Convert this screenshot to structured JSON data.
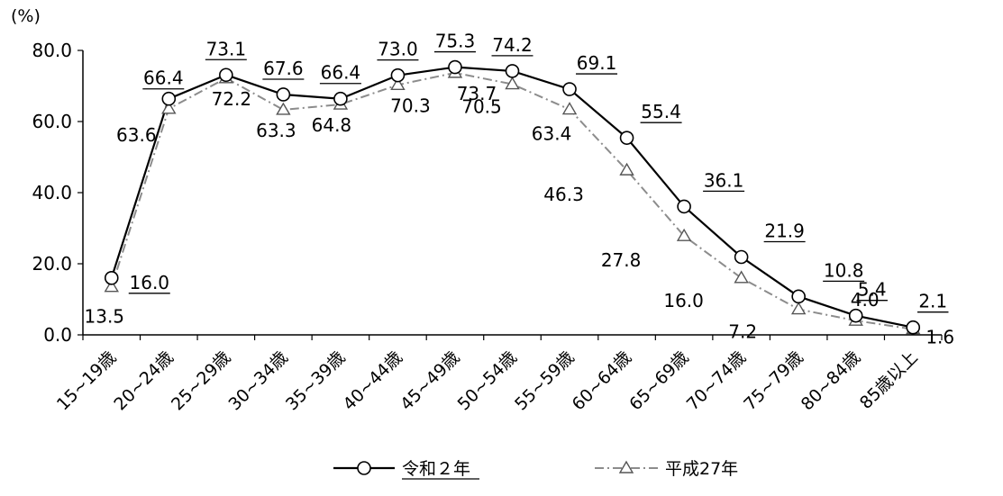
{
  "chart_data": {
    "type": "line",
    "unit_label": "(%)",
    "categories": [
      "15~19歳",
      "20~24歳",
      "25~29歳",
      "30~34歳",
      "35~39歳",
      "40~44歳",
      "45~49歳",
      "50~54歳",
      "55~59歳",
      "60~64歳",
      "65~69歳",
      "70~74歳",
      "75~79歳",
      "80~84歳",
      "85歳以上"
    ],
    "ylim": [
      0,
      80
    ],
    "yticks": [
      "0.0",
      "20.0",
      "40.0",
      "60.0",
      "80.0"
    ],
    "grid": false,
    "legend_position": "bottom",
    "series": [
      {
        "name": "令和２年",
        "marker": "circle",
        "line_style": "solid",
        "color": "#000000",
        "values": [
          16.0,
          66.4,
          73.1,
          67.6,
          66.4,
          73.0,
          75.3,
          74.2,
          69.1,
          55.4,
          36.1,
          21.9,
          10.8,
          5.4,
          2.1
        ],
        "labels": [
          "16.0",
          "66.4",
          "73.1",
          "67.6",
          "66.4",
          "73.0",
          "75.3",
          "74.2",
          "69.1",
          "55.4",
          "36.1",
          "21.9",
          "10.8",
          "5.4",
          "2.1"
        ]
      },
      {
        "name": "平成27年",
        "marker": "triangle",
        "line_style": "dash-dot",
        "color": "#8c8c8c",
        "values": [
          13.5,
          63.6,
          72.2,
          63.3,
          64.8,
          70.3,
          73.7,
          70.5,
          63.4,
          46.3,
          27.8,
          16.0,
          7.2,
          4.0,
          1.6
        ],
        "labels": [
          "13.5",
          "63.6",
          "72.2",
          "63.3",
          "64.8",
          "70.3",
          "73.7",
          "70.5",
          "63.4",
          "46.3",
          "27.8",
          "16.0",
          "7.2",
          "4.0",
          "1.6"
        ]
      }
    ]
  }
}
